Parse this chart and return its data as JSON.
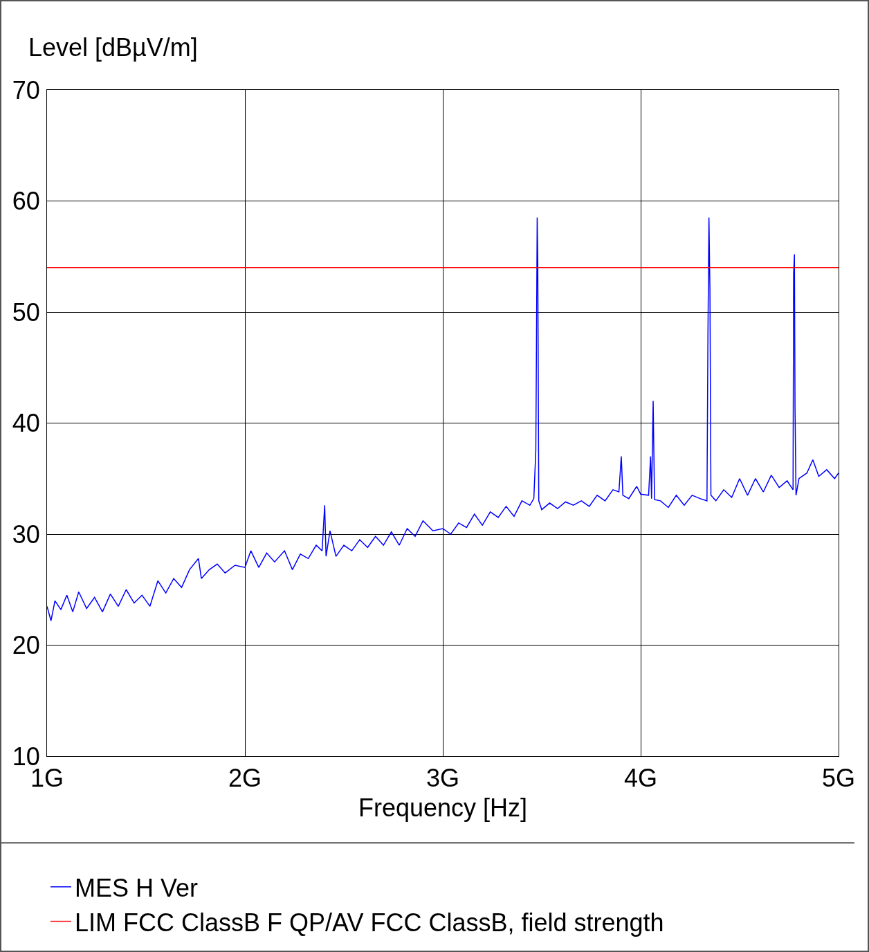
{
  "chart_data": {
    "type": "line",
    "xlabel": "Frequency [Hz]",
    "ylabel": "Level [dBµV/m]",
    "xlim": [
      1,
      5
    ],
    "xticks": [
      {
        "value": 1,
        "label": "1G"
      },
      {
        "value": 2,
        "label": "2G"
      },
      {
        "value": 3,
        "label": "3G"
      },
      {
        "value": 4,
        "label": "4G"
      },
      {
        "value": 5,
        "label": "5G"
      }
    ],
    "ylim": [
      10,
      70
    ],
    "yticks": [
      10,
      20,
      30,
      40,
      50,
      60,
      70
    ],
    "grid": true,
    "legend": "bottom",
    "marker": "none",
    "line_style": "solid",
    "series": [
      {
        "name": "MES H Ver",
        "color": "#0000ff",
        "x": [
          1.0,
          1.02,
          1.04,
          1.07,
          1.1,
          1.13,
          1.16,
          1.2,
          1.24,
          1.28,
          1.32,
          1.36,
          1.4,
          1.44,
          1.48,
          1.52,
          1.56,
          1.6,
          1.64,
          1.68,
          1.72,
          1.765,
          1.78,
          1.82,
          1.86,
          1.9,
          1.95,
          2.0,
          2.03,
          2.07,
          2.11,
          2.15,
          2.2,
          2.24,
          2.28,
          2.32,
          2.36,
          2.39,
          2.403,
          2.41,
          2.43,
          2.46,
          2.5,
          2.54,
          2.58,
          2.62,
          2.66,
          2.7,
          2.74,
          2.78,
          2.82,
          2.86,
          2.9,
          2.95,
          3.0,
          3.04,
          3.08,
          3.12,
          3.16,
          3.2,
          3.24,
          3.28,
          3.32,
          3.36,
          3.4,
          3.44,
          3.46,
          3.47,
          3.473,
          3.477,
          3.48,
          3.485,
          3.5,
          3.54,
          3.58,
          3.62,
          3.66,
          3.7,
          3.74,
          3.78,
          3.82,
          3.86,
          3.89,
          3.902,
          3.91,
          3.94,
          3.98,
          4.0,
          4.04,
          4.05,
          4.055,
          4.063,
          4.07,
          4.1,
          4.14,
          4.18,
          4.22,
          4.26,
          4.3,
          4.335,
          4.34,
          4.345,
          4.35,
          4.355,
          4.38,
          4.42,
          4.46,
          4.5,
          4.54,
          4.58,
          4.62,
          4.66,
          4.7,
          4.74,
          4.77,
          4.773,
          4.777,
          4.78,
          4.785,
          4.8,
          4.84,
          4.87,
          4.9,
          4.94,
          4.98,
          5.0
        ],
        "values": [
          23.5,
          22.2,
          24.0,
          23.2,
          24.5,
          23.0,
          24.8,
          23.3,
          24.3,
          23.0,
          24.6,
          23.5,
          25.0,
          23.8,
          24.5,
          23.5,
          25.8,
          24.7,
          26.0,
          25.2,
          26.8,
          27.8,
          26.0,
          26.8,
          27.3,
          26.5,
          27.2,
          27.0,
          28.5,
          27.0,
          28.3,
          27.5,
          28.5,
          26.8,
          28.2,
          27.8,
          29.0,
          28.5,
          32.6,
          28.0,
          30.3,
          28.0,
          29.0,
          28.5,
          29.5,
          28.8,
          29.8,
          29.0,
          30.2,
          29.0,
          30.5,
          29.8,
          31.2,
          30.3,
          30.5,
          30.0,
          31.0,
          30.6,
          31.8,
          30.8,
          32.0,
          31.5,
          32.5,
          31.6,
          33.0,
          32.6,
          33.2,
          37.5,
          46.0,
          58.5,
          54.5,
          33.0,
          32.2,
          32.8,
          32.3,
          32.9,
          32.6,
          33.0,
          32.5,
          33.5,
          33.0,
          34.0,
          33.8,
          37.0,
          33.5,
          33.2,
          34.3,
          33.6,
          33.5,
          37.0,
          33.2,
          42.0,
          33.1,
          33.0,
          32.4,
          33.5,
          32.6,
          33.5,
          33.2,
          33.0,
          48.0,
          58.5,
          52.0,
          33.5,
          33.0,
          34.0,
          33.3,
          35.0,
          33.5,
          35.0,
          33.8,
          35.3,
          34.2,
          34.8,
          34.0,
          53.5,
          55.2,
          41.5,
          33.5,
          35.0,
          35.5,
          36.7,
          35.2,
          35.8,
          35.0,
          35.5
        ]
      },
      {
        "name": "LIM FCC ClassB F QP/AV FCC ClassB, field strength",
        "color": "#ff0000",
        "x": [
          1,
          5
        ],
        "values": [
          54,
          54
        ]
      }
    ]
  }
}
